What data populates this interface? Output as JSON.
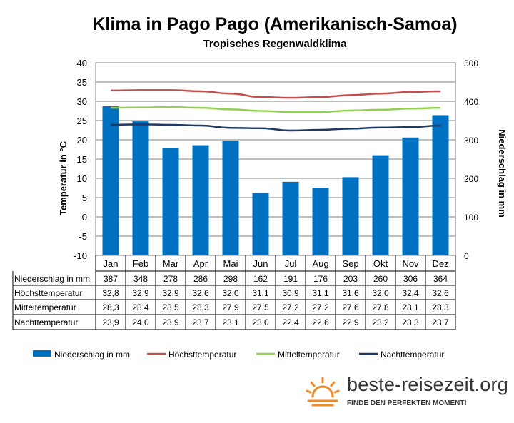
{
  "chart_data": {
    "type": "bar+line",
    "title": "Klima in Pago Pago (Amerikanisch-Samoa)",
    "subtitle": "Tropisches Regenwaldklima",
    "ylabel_left": "Temperatur in °C",
    "ylabel_right": "Niederschlag in mm",
    "ylim_left": [
      -10,
      40
    ],
    "ylim_right": [
      0,
      500
    ],
    "yticks_left": [
      "40",
      "35",
      "30",
      "25",
      "20",
      "15",
      "10",
      "5",
      "0",
      "-5",
      "-10"
    ],
    "yticks_right": [
      "500",
      "400",
      "300",
      "200",
      "100",
      "0"
    ],
    "grid": true,
    "legend_position": "bottom",
    "categories": [
      "Jan",
      "Feb",
      "Mar",
      "Apr",
      "Mai",
      "Jun",
      "Jul",
      "Aug",
      "Sep",
      "Okt",
      "Nov",
      "Dez"
    ],
    "series": [
      {
        "name": "Niederschlag in mm",
        "type": "bar",
        "axis": "right",
        "color": "#0070c0",
        "values": [
          387,
          348,
          278,
          286,
          298,
          162,
          191,
          176,
          203,
          260,
          306,
          364
        ],
        "labels": [
          "387",
          "348",
          "278",
          "286",
          "298",
          "162",
          "191",
          "176",
          "203",
          "260",
          "306",
          "364"
        ]
      },
      {
        "name": "Höchsttemperatur",
        "type": "line",
        "axis": "left",
        "color": "#c0504d",
        "values": [
          32.8,
          32.9,
          32.9,
          32.6,
          32.0,
          31.1,
          30.9,
          31.1,
          31.6,
          32.0,
          32.4,
          32.6
        ],
        "labels": [
          "32,8",
          "32,9",
          "32,9",
          "32,6",
          "32,0",
          "31,1",
          "30,9",
          "31,1",
          "31,6",
          "32,0",
          "32,4",
          "32,6"
        ]
      },
      {
        "name": "Mitteltemperatur",
        "type": "line",
        "axis": "left",
        "color": "#92d050",
        "values": [
          28.3,
          28.4,
          28.5,
          28.3,
          27.9,
          27.5,
          27.2,
          27.2,
          27.6,
          27.8,
          28.1,
          28.3
        ],
        "labels": [
          "28,3",
          "28,4",
          "28,5",
          "28,3",
          "27,9",
          "27,5",
          "27,2",
          "27,2",
          "27,6",
          "27,8",
          "28,1",
          "28,3"
        ]
      },
      {
        "name": "Nachttemperatur",
        "type": "line",
        "axis": "left",
        "color": "#1f3864",
        "values": [
          23.9,
          24.0,
          23.9,
          23.7,
          23.1,
          23.0,
          22.4,
          22.6,
          22.9,
          23.2,
          23.3,
          23.7
        ],
        "labels": [
          "23,9",
          "24,0",
          "23,9",
          "23,7",
          "23,1",
          "23,0",
          "22,4",
          "22,6",
          "22,9",
          "23,2",
          "23,3",
          "23,7"
        ]
      }
    ]
  },
  "brand": {
    "name": "beste-reisezeit.org",
    "tagline": "FINDE DEN PERFEKTEN MOMENT!",
    "color": "#f08a24"
  }
}
